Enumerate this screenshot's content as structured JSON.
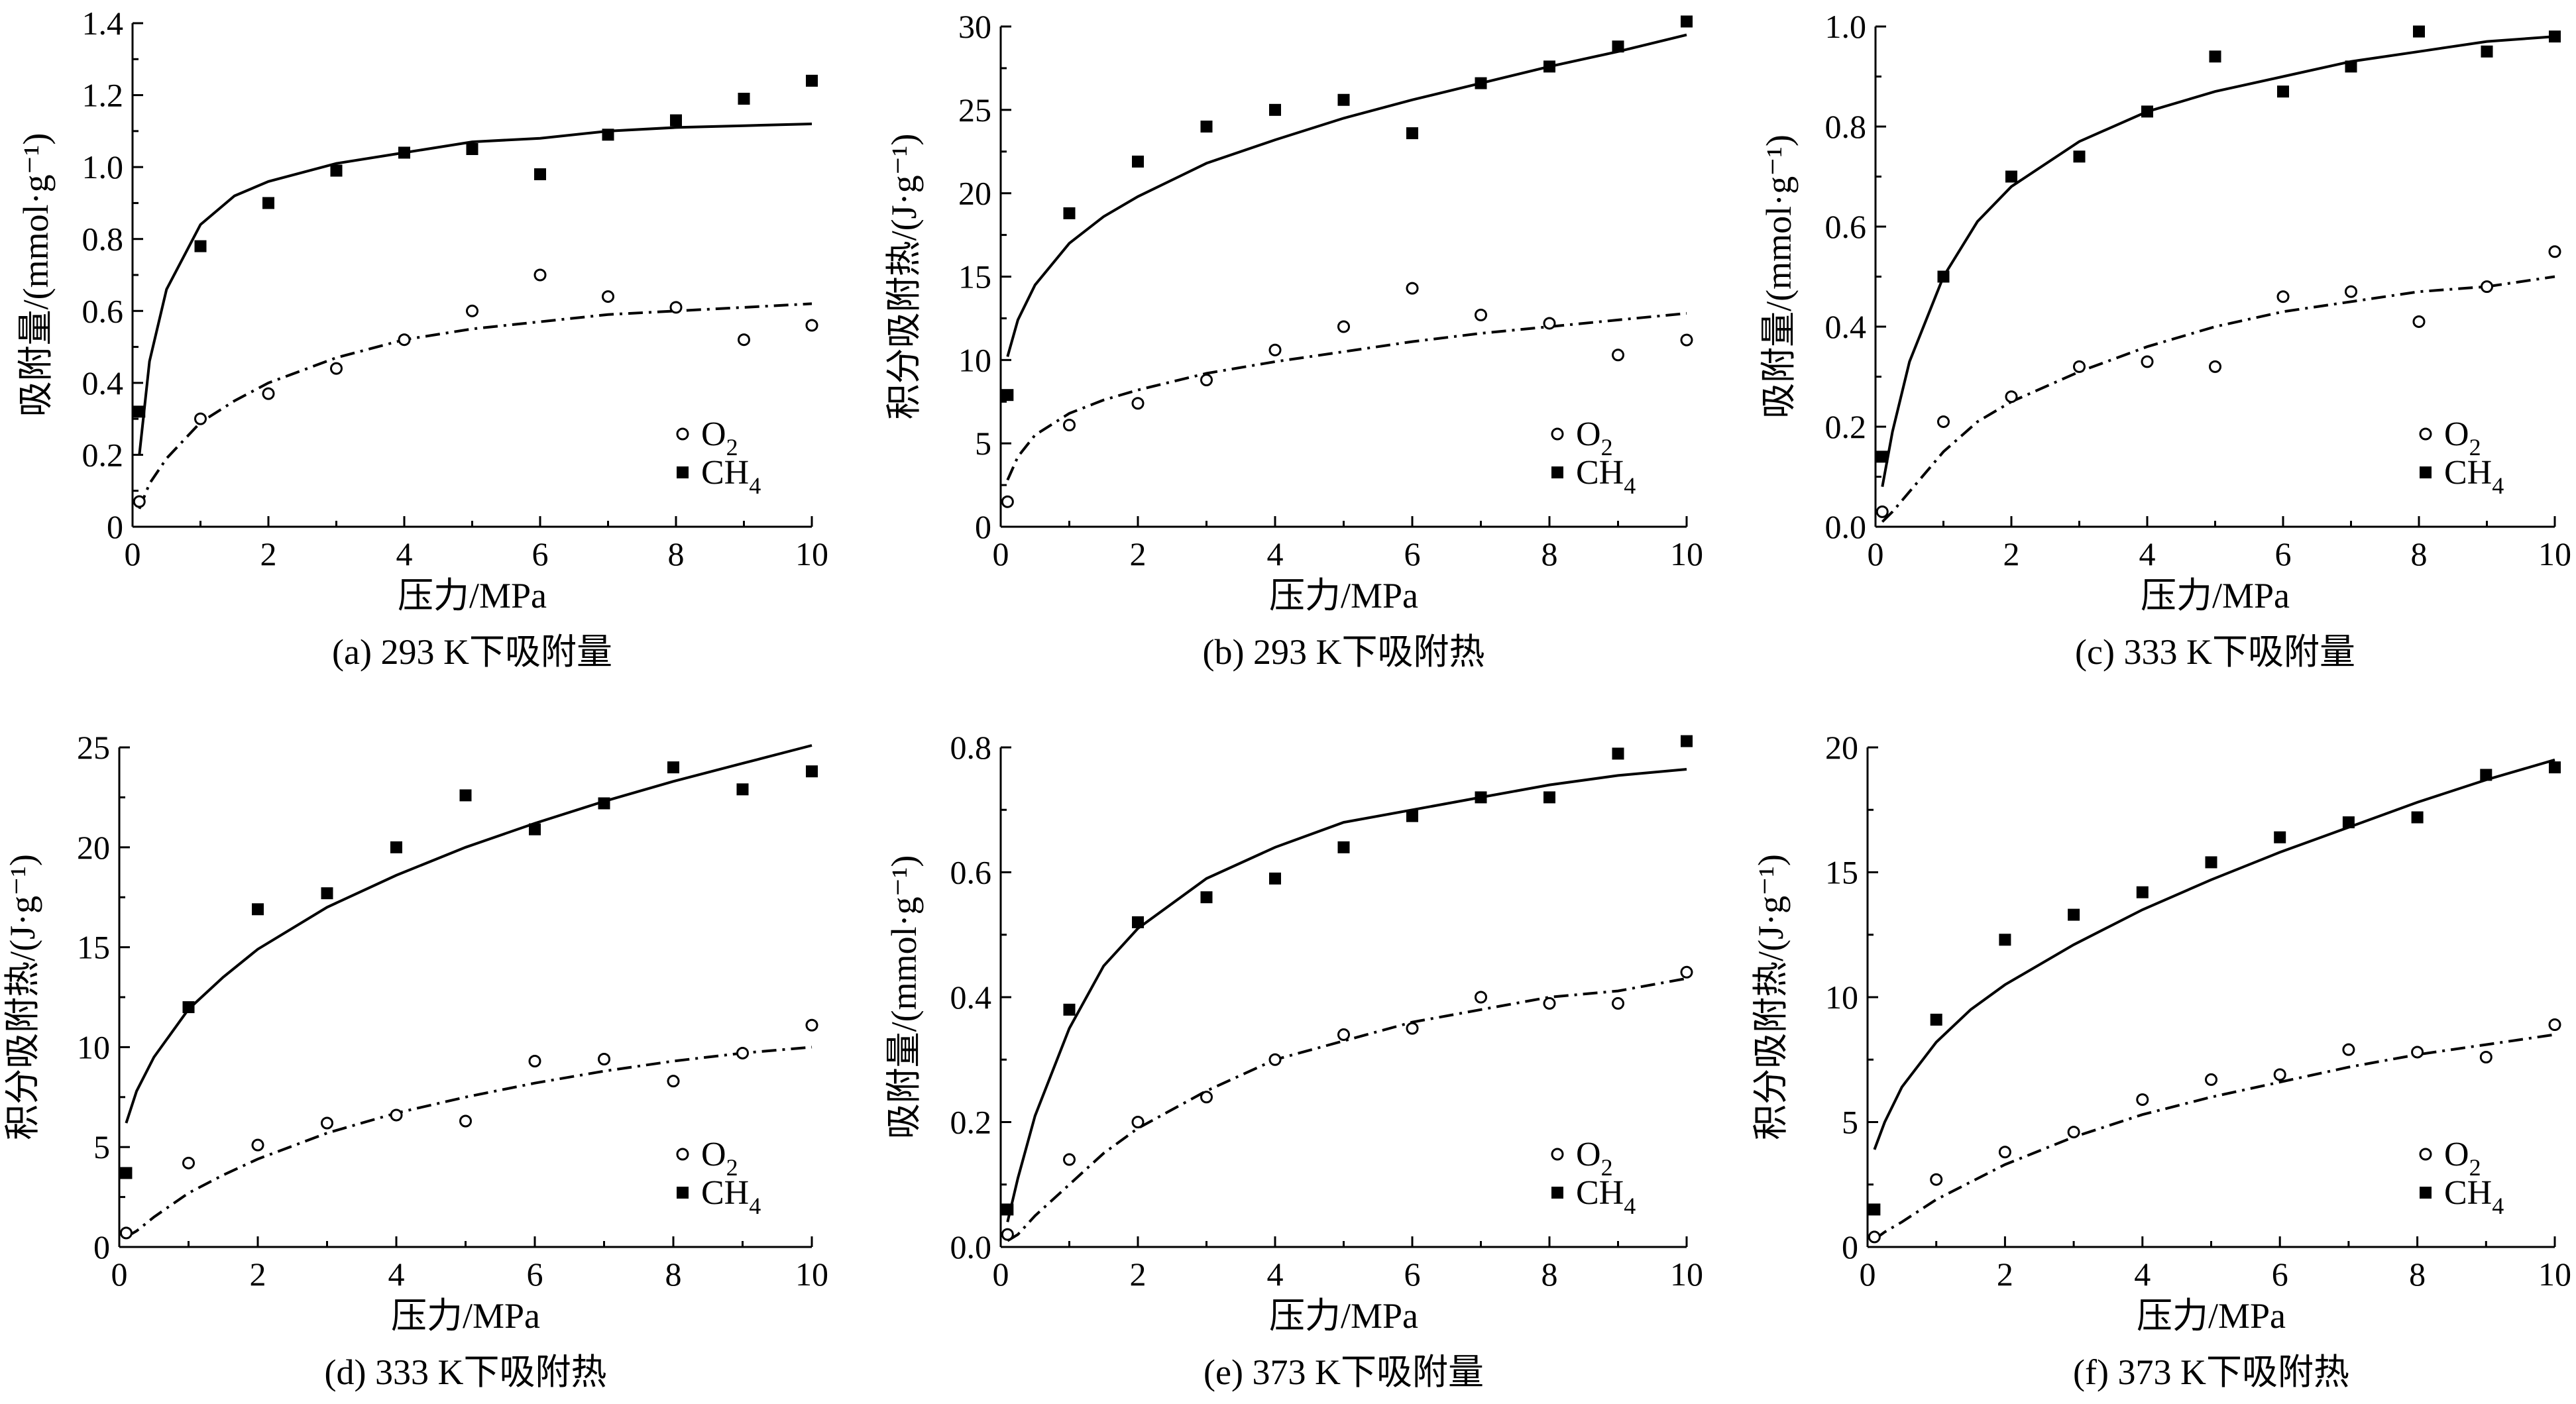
{
  "figure": {
    "panels": [
      {
        "caption": "(a) 293 K下吸附量",
        "xlabel": "压力/MPa",
        "ylabel": "吸附量/(mmol·g⁻¹)"
      },
      {
        "caption": "(b) 293 K下吸附热",
        "xlabel": "压力/MPa",
        "ylabel": "积分吸附热/(J·g⁻¹)"
      },
      {
        "caption": "(c) 333 K下吸附量",
        "xlabel": "压力/MPa",
        "ylabel": "吸附量/(mmol·g⁻¹)"
      },
      {
        "caption": "(d) 333 K下吸附热",
        "xlabel": "压力/MPa",
        "ylabel": "积分吸附热/(J·g⁻¹)"
      },
      {
        "caption": "(e) 373 K下吸附量",
        "xlabel": "压力/MPa",
        "ylabel": "吸附量/(mmol·g⁻¹)"
      },
      {
        "caption": "(f) 373 K下吸附热",
        "xlabel": "压力/MPa",
        "ylabel": "积分吸附热/(J·g⁻¹)"
      }
    ]
  },
  "chart_data": [
    {
      "type": "scatter",
      "title": "(a) 293 K下吸附量",
      "xlabel": "压力/MPa",
      "ylabel": "吸附量/(mmol·g⁻¹)",
      "xlim": [
        0,
        10
      ],
      "ylim": [
        0,
        1.4
      ],
      "xticks": [
        0,
        2,
        4,
        6,
        8,
        10
      ],
      "xtick_labels": [
        "0",
        "2",
        "4",
        "6",
        "8",
        "10"
      ],
      "yticks": [
        0,
        0.2,
        0.4,
        0.6,
        0.8,
        1.0,
        1.2,
        1.4
      ],
      "ytick_labels": [
        "0",
        "0.2",
        "0.4",
        "0.6",
        "0.8",
        "1.0",
        "1.2",
        "1.4"
      ],
      "legend_position": "bottom-right",
      "series": [
        {
          "name": "O2",
          "marker": "open-circle",
          "fit_line": "dash-dot",
          "x": [
            0.1,
            1,
            2,
            3,
            4,
            5,
            6,
            7,
            8,
            9,
            10
          ],
          "y": [
            0.07,
            0.3,
            0.37,
            0.44,
            0.52,
            0.6,
            0.7,
            0.64,
            0.61,
            0.52,
            0.56
          ],
          "fit": {
            "x": [
              0.1,
              0.25,
              0.5,
              1,
              1.5,
              2,
              3,
              4,
              5,
              6,
              7,
              8,
              9,
              10
            ],
            "y": [
              0.05,
              0.12,
              0.19,
              0.29,
              0.35,
              0.4,
              0.47,
              0.52,
              0.55,
              0.57,
              0.59,
              0.6,
              0.61,
              0.62
            ]
          }
        },
        {
          "name": "CH4",
          "marker": "filled-square",
          "fit_line": "solid",
          "x": [
            0.1,
            1,
            2,
            3,
            4,
            5,
            6,
            7,
            8,
            9,
            10
          ],
          "y": [
            0.32,
            0.78,
            0.9,
            0.99,
            1.04,
            1.05,
            0.98,
            1.09,
            1.13,
            1.19,
            1.24
          ],
          "fit": {
            "x": [
              0.1,
              0.25,
              0.5,
              1,
              1.5,
              2,
              3,
              4,
              5,
              6,
              7,
              8,
              9,
              10
            ],
            "y": [
              0.2,
              0.46,
              0.66,
              0.84,
              0.92,
              0.96,
              1.01,
              1.04,
              1.07,
              1.08,
              1.1,
              1.11,
              1.115,
              1.12
            ]
          }
        }
      ]
    },
    {
      "type": "scatter",
      "title": "(b) 293 K下吸附热",
      "xlabel": "压力/MPa",
      "ylabel": "积分吸附热/(J·g⁻¹)",
      "xlim": [
        0,
        10
      ],
      "ylim": [
        0,
        30
      ],
      "xticks": [
        0,
        2,
        4,
        6,
        8,
        10
      ],
      "xtick_labels": [
        "0",
        "2",
        "4",
        "6",
        "8",
        "10"
      ],
      "yticks": [
        0,
        5,
        10,
        15,
        20,
        25,
        30
      ],
      "ytick_labels": [
        "0",
        "5",
        "10",
        "15",
        "20",
        "25",
        "30"
      ],
      "legend_position": "bottom-right",
      "series": [
        {
          "name": "O2",
          "marker": "open-circle",
          "fit_line": "dash-dot",
          "x": [
            0.1,
            1,
            2,
            3,
            4,
            5,
            6,
            7,
            8,
            9,
            10
          ],
          "y": [
            1.5,
            6.1,
            7.4,
            8.8,
            10.6,
            12.0,
            14.3,
            12.7,
            12.2,
            10.3,
            11.2
          ],
          "fit": {
            "x": [
              0.1,
              0.25,
              0.5,
              1,
              1.5,
              2,
              3,
              4,
              5,
              6,
              7,
              8,
              9,
              10
            ],
            "y": [
              2.8,
              4.2,
              5.5,
              6.8,
              7.6,
              8.2,
              9.2,
              9.9,
              10.5,
              11.1,
              11.6,
              12.0,
              12.4,
              12.8
            ]
          }
        },
        {
          "name": "CH4",
          "marker": "filled-square",
          "fit_line": "solid",
          "x": [
            0.1,
            1,
            2,
            3,
            4,
            5,
            6,
            7,
            8,
            9,
            10
          ],
          "y": [
            7.9,
            18.8,
            21.9,
            24.0,
            25.0,
            25.6,
            23.6,
            26.6,
            27.6,
            28.8,
            30.3
          ],
          "fit": {
            "x": [
              0.1,
              0.25,
              0.5,
              1,
              1.5,
              2,
              3,
              4,
              5,
              6,
              7,
              8,
              9,
              10
            ],
            "y": [
              10.2,
              12.4,
              14.5,
              17.0,
              18.6,
              19.8,
              21.8,
              23.2,
              24.5,
              25.6,
              26.6,
              27.6,
              28.5,
              29.5
            ]
          }
        }
      ]
    },
    {
      "type": "scatter",
      "title": "(c) 333 K下吸附量",
      "xlabel": "压力/MPa",
      "ylabel": "吸附量/(mmol·g⁻¹)",
      "xlim": [
        0,
        10
      ],
      "ylim": [
        0,
        1.0
      ],
      "xticks": [
        0,
        2,
        4,
        6,
        8,
        10
      ],
      "xtick_labels": [
        "0",
        "2",
        "4",
        "6",
        "8",
        "10"
      ],
      "yticks": [
        0,
        0.2,
        0.4,
        0.6,
        0.8,
        1.0
      ],
      "ytick_labels": [
        "0.0",
        "0.2",
        "0.4",
        "0.6",
        "0.8",
        "1.0"
      ],
      "legend_position": "bottom-right",
      "series": [
        {
          "name": "O2",
          "marker": "open-circle",
          "fit_line": "dash-dot",
          "x": [
            0.1,
            1,
            2,
            3,
            4,
            5,
            6,
            7,
            8,
            9,
            10
          ],
          "y": [
            0.03,
            0.21,
            0.26,
            0.32,
            0.33,
            0.32,
            0.46,
            0.47,
            0.41,
            0.48,
            0.55
          ],
          "fit": {
            "x": [
              0.1,
              0.25,
              0.5,
              1,
              1.5,
              2,
              3,
              4,
              5,
              6,
              7,
              8,
              9,
              10
            ],
            "y": [
              0.01,
              0.03,
              0.07,
              0.15,
              0.21,
              0.25,
              0.31,
              0.36,
              0.4,
              0.43,
              0.45,
              0.47,
              0.48,
              0.5
            ]
          }
        },
        {
          "name": "CH4",
          "marker": "filled-square",
          "fit_line": "solid",
          "x": [
            0.1,
            1,
            2,
            3,
            4,
            5,
            6,
            7,
            8,
            9,
            10
          ],
          "y": [
            0.14,
            0.5,
            0.7,
            0.74,
            0.83,
            0.94,
            0.87,
            0.92,
            0.99,
            0.95,
            0.98
          ],
          "fit": {
            "x": [
              0.1,
              0.25,
              0.5,
              1,
              1.5,
              2,
              3,
              4,
              5,
              6,
              7,
              8,
              9,
              10
            ],
            "y": [
              0.08,
              0.19,
              0.33,
              0.5,
              0.61,
              0.68,
              0.77,
              0.83,
              0.87,
              0.9,
              0.93,
              0.95,
              0.97,
              0.98
            ]
          }
        }
      ]
    },
    {
      "type": "scatter",
      "title": "(d) 333 K下吸附热",
      "xlabel": "压力/MPa",
      "ylabel": "积分吸附热/(J·g⁻¹)",
      "xlim": [
        0,
        10
      ],
      "ylim": [
        0,
        25
      ],
      "xticks": [
        0,
        2,
        4,
        6,
        8,
        10
      ],
      "xtick_labels": [
        "0",
        "2",
        "4",
        "6",
        "8",
        "10"
      ],
      "yticks": [
        0,
        5,
        10,
        15,
        20,
        25
      ],
      "ytick_labels": [
        "0",
        "5",
        "10",
        "15",
        "20",
        "25"
      ],
      "legend_position": "bottom-right",
      "series": [
        {
          "name": "O2",
          "marker": "open-circle",
          "fit_line": "dash-dot",
          "x": [
            0.1,
            1,
            2,
            3,
            4,
            5,
            6,
            7,
            8,
            9,
            10
          ],
          "y": [
            0.7,
            4.2,
            5.1,
            6.2,
            6.6,
            6.3,
            9.3,
            9.4,
            8.3,
            9.7,
            11.1
          ],
          "fit": {
            "x": [
              0.1,
              0.25,
              0.5,
              1,
              1.5,
              2,
              3,
              4,
              5,
              6,
              7,
              8,
              9,
              10
            ],
            "y": [
              0.5,
              0.8,
              1.5,
              2.7,
              3.6,
              4.4,
              5.7,
              6.7,
              7.5,
              8.2,
              8.8,
              9.3,
              9.7,
              10.0
            ]
          }
        },
        {
          "name": "CH4",
          "marker": "filled-square",
          "fit_line": "solid",
          "x": [
            0.1,
            1,
            2,
            3,
            4,
            5,
            6,
            7,
            8,
            9,
            10
          ],
          "y": [
            3.7,
            12.0,
            16.9,
            17.7,
            20.0,
            22.6,
            20.9,
            22.2,
            24.0,
            22.9,
            23.8
          ],
          "fit": {
            "x": [
              0.1,
              0.25,
              0.5,
              1,
              1.5,
              2,
              3,
              4,
              5,
              6,
              7,
              8,
              9,
              10
            ],
            "y": [
              6.2,
              7.8,
              9.5,
              11.9,
              13.5,
              14.9,
              17.0,
              18.6,
              20.0,
              21.2,
              22.3,
              23.3,
              24.2,
              25.1
            ]
          }
        }
      ]
    },
    {
      "type": "scatter",
      "title": "(e) 373 K下吸附量",
      "xlabel": "压力/MPa",
      "ylabel": "吸附量/(mmol·g⁻¹)",
      "xlim": [
        0,
        10
      ],
      "ylim": [
        0,
        0.8
      ],
      "xticks": [
        0,
        2,
        4,
        6,
        8,
        10
      ],
      "xtick_labels": [
        "0",
        "2",
        "4",
        "6",
        "8",
        "10"
      ],
      "yticks": [
        0,
        0.2,
        0.4,
        0.6,
        0.8
      ],
      "ytick_labels": [
        "0.0",
        "0.2",
        "0.4",
        "0.6",
        "0.8"
      ],
      "legend_position": "bottom-right",
      "series": [
        {
          "name": "O2",
          "marker": "open-circle",
          "fit_line": "dash-dot",
          "x": [
            0.1,
            1,
            2,
            3,
            4,
            5,
            6,
            7,
            8,
            9,
            10
          ],
          "y": [
            0.02,
            0.14,
            0.2,
            0.24,
            0.3,
            0.34,
            0.35,
            0.4,
            0.39,
            0.39,
            0.44
          ],
          "fit": {
            "x": [
              0.1,
              0.25,
              0.5,
              1,
              1.5,
              2,
              3,
              4,
              5,
              6,
              7,
              8,
              9,
              10
            ],
            "y": [
              0.01,
              0.02,
              0.05,
              0.1,
              0.15,
              0.19,
              0.25,
              0.3,
              0.33,
              0.36,
              0.38,
              0.4,
              0.41,
              0.43
            ]
          }
        },
        {
          "name": "CH4",
          "marker": "filled-square",
          "fit_line": "solid",
          "x": [
            0.1,
            1,
            2,
            3,
            4,
            5,
            6,
            7,
            8,
            9,
            10
          ],
          "y": [
            0.06,
            0.38,
            0.52,
            0.56,
            0.59,
            0.64,
            0.69,
            0.72,
            0.72,
            0.79,
            0.81
          ],
          "fit": {
            "x": [
              0.1,
              0.25,
              0.5,
              1,
              1.5,
              2,
              3,
              4,
              5,
              6,
              7,
              8,
              9,
              10
            ],
            "y": [
              0.04,
              0.11,
              0.21,
              0.35,
              0.45,
              0.51,
              0.59,
              0.64,
              0.68,
              0.7,
              0.72,
              0.74,
              0.755,
              0.765
            ]
          }
        }
      ]
    },
    {
      "type": "scatter",
      "title": "(f) 373 K下吸附热",
      "xlabel": "压力/MPa",
      "ylabel": "积分吸附热/(J·g⁻¹)",
      "xlim": [
        0,
        10
      ],
      "ylim": [
        0,
        20
      ],
      "xticks": [
        0,
        2,
        4,
        6,
        8,
        10
      ],
      "xtick_labels": [
        "0",
        "2",
        "4",
        "6",
        "8",
        "10"
      ],
      "yticks": [
        0,
        5,
        10,
        15,
        20
      ],
      "ytick_labels": [
        "0",
        "5",
        "10",
        "15",
        "20"
      ],
      "legend_position": "bottom-right",
      "series": [
        {
          "name": "O2",
          "marker": "open-circle",
          "fit_line": "dash-dot",
          "x": [
            0.1,
            1,
            2,
            3,
            4,
            5,
            6,
            7,
            8,
            9,
            10
          ],
          "y": [
            0.4,
            2.7,
            3.8,
            4.6,
            5.9,
            6.7,
            6.9,
            7.9,
            7.8,
            7.6,
            8.9
          ],
          "fit": {
            "x": [
              0.1,
              0.25,
              0.5,
              1,
              1.5,
              2,
              3,
              4,
              5,
              6,
              7,
              8,
              9,
              10
            ],
            "y": [
              0.3,
              0.6,
              1.0,
              1.9,
              2.6,
              3.3,
              4.4,
              5.3,
              6.0,
              6.6,
              7.2,
              7.7,
              8.1,
              8.5
            ]
          }
        },
        {
          "name": "CH4",
          "marker": "filled-square",
          "fit_line": "solid",
          "x": [
            0.1,
            1,
            2,
            3,
            4,
            5,
            6,
            7,
            8,
            9,
            10
          ],
          "y": [
            1.5,
            9.1,
            12.3,
            13.3,
            14.2,
            15.4,
            16.4,
            17.0,
            17.2,
            18.9,
            19.2
          ],
          "fit": {
            "x": [
              0.1,
              0.25,
              0.5,
              1,
              1.5,
              2,
              3,
              4,
              5,
              6,
              7,
              8,
              9,
              10
            ],
            "y": [
              3.9,
              5.0,
              6.4,
              8.2,
              9.5,
              10.5,
              12.1,
              13.5,
              14.7,
              15.8,
              16.8,
              17.8,
              18.7,
              19.5
            ]
          }
        }
      ]
    }
  ]
}
